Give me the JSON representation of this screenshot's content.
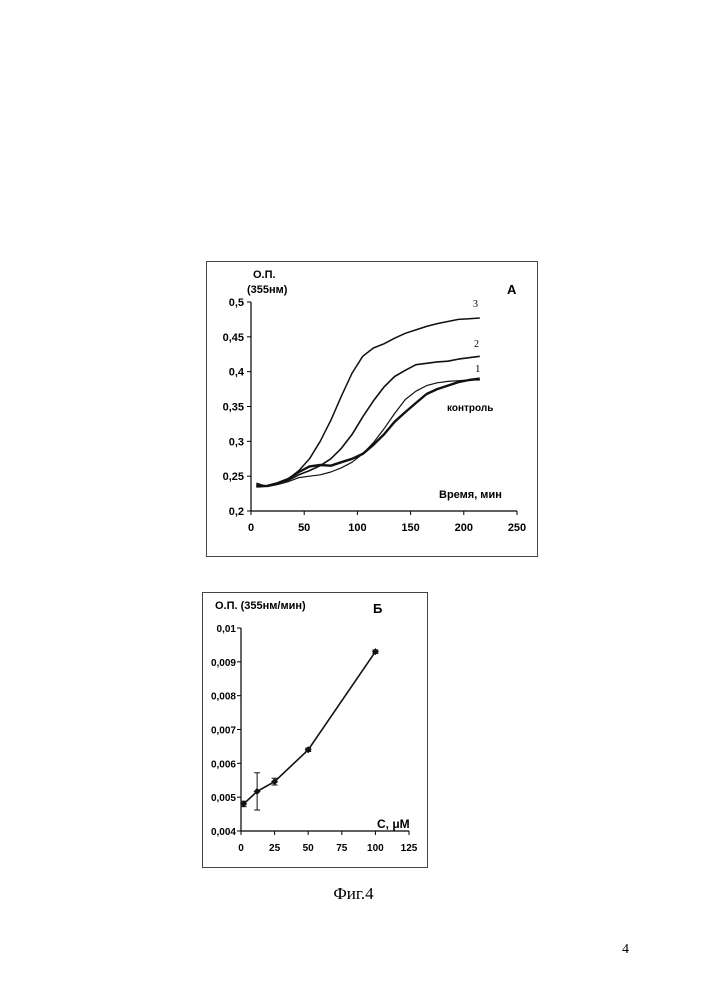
{
  "caption": "Фиг.4",
  "page_number": "4",
  "chart_data": [
    {
      "panel_label": "А",
      "type": "line",
      "ylabel_line1": "О.П.",
      "ylabel_line2": "(355нм)",
      "xlabel": "Время, мин",
      "xlim": [
        0,
        250
      ],
      "ylim": [
        0.2,
        0.5
      ],
      "x_ticks": [
        "0",
        "50",
        "100",
        "150",
        "200",
        "250"
      ],
      "y_ticks": [
        "0,2",
        "0,25",
        "0,3",
        "0,35",
        "0,4",
        "0,45",
        "0,5"
      ],
      "grid": false,
      "series": [
        {
          "name": "3",
          "stroke_width": 1.5,
          "x": [
            5,
            15,
            25,
            35,
            45,
            55,
            65,
            75,
            85,
            95,
            105,
            115,
            125,
            135,
            145,
            155,
            165,
            175,
            185,
            195,
            205,
            215
          ],
          "y": [
            0.238,
            0.236,
            0.24,
            0.246,
            0.258,
            0.275,
            0.3,
            0.33,
            0.365,
            0.398,
            0.422,
            0.434,
            0.44,
            0.448,
            0.455,
            0.46,
            0.465,
            0.469,
            0.472,
            0.475,
            0.476,
            0.477
          ]
        },
        {
          "name": "2",
          "stroke_width": 1.6,
          "x": [
            5,
            15,
            25,
            35,
            45,
            55,
            65,
            75,
            85,
            95,
            105,
            115,
            125,
            135,
            145,
            155,
            165,
            175,
            185,
            195,
            205,
            215
          ],
          "y": [
            0.236,
            0.236,
            0.24,
            0.244,
            0.252,
            0.258,
            0.265,
            0.275,
            0.29,
            0.31,
            0.335,
            0.358,
            0.378,
            0.393,
            0.402,
            0.41,
            0.412,
            0.414,
            0.415,
            0.418,
            0.42,
            0.422
          ]
        },
        {
          "name": "1",
          "stroke_width": 1.2,
          "x": [
            5,
            15,
            25,
            35,
            45,
            55,
            65,
            75,
            85,
            95,
            105,
            115,
            125,
            135,
            145,
            155,
            165,
            175,
            185,
            195,
            205,
            215
          ],
          "y": [
            0.24,
            0.235,
            0.238,
            0.242,
            0.248,
            0.25,
            0.252,
            0.256,
            0.262,
            0.27,
            0.282,
            0.298,
            0.318,
            0.34,
            0.36,
            0.372,
            0.38,
            0.384,
            0.386,
            0.387,
            0.388,
            0.388
          ]
        },
        {
          "name": "контроль",
          "stroke_width": 2.4,
          "x": [
            5,
            15,
            25,
            35,
            45,
            55,
            65,
            75,
            85,
            95,
            105,
            115,
            125,
            135,
            145,
            155,
            165,
            175,
            185,
            195,
            205,
            215
          ],
          "y": [
            0.235,
            0.236,
            0.24,
            0.246,
            0.256,
            0.264,
            0.266,
            0.265,
            0.27,
            0.275,
            0.282,
            0.295,
            0.31,
            0.328,
            0.342,
            0.355,
            0.368,
            0.375,
            0.38,
            0.385,
            0.388,
            0.39
          ]
        }
      ]
    },
    {
      "panel_label": "Б",
      "type": "line",
      "ylabel": "О.П. (355нм/мин)",
      "xlabel": "С, μМ",
      "xlim": [
        0,
        125
      ],
      "ylim": [
        0.004,
        0.01
      ],
      "x_ticks": [
        "0",
        "25",
        "50",
        "75",
        "100",
        "125"
      ],
      "y_ticks": [
        "0,004",
        "0,005",
        "0,006",
        "0,007",
        "0,008",
        "0,009",
        "0,01"
      ],
      "grid": false,
      "series": [
        {
          "x": [
            2,
            12,
            25,
            50,
            100
          ],
          "y": [
            0.0048,
            0.00517,
            0.00546,
            0.0064,
            0.0093
          ],
          "error": [
            8e-05,
            0.00055,
            0.0001,
            5e-05,
            5e-05
          ]
        }
      ]
    }
  ]
}
